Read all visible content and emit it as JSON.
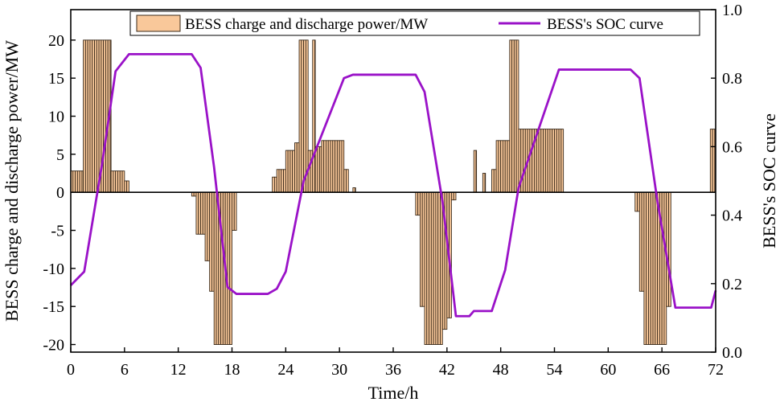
{
  "chart_data": {
    "type": "bar+line",
    "xlabel": "Time/h",
    "ylabel_left": "BESS charge and discharge power/MW",
    "ylabel_right": "BESS's SOC curve",
    "xlim": [
      0,
      72
    ],
    "ylim_left": [
      -21,
      24
    ],
    "ylim_right": [
      0.0,
      1.0
    ],
    "x_ticks": [
      "0",
      "6",
      "12",
      "18",
      "24",
      "30",
      "36",
      "42",
      "48",
      "54",
      "60",
      "66",
      "72"
    ],
    "y_left_ticks": [
      "-20",
      "-15",
      "-10",
      "-5",
      "0",
      "5",
      "10",
      "15",
      "20"
    ],
    "y_right_ticks": [
      "0.0",
      "0.2",
      "0.4",
      "0.6",
      "0.8",
      "1.0"
    ],
    "grid": false,
    "legend_position": "top",
    "colors": {
      "bar_fill": "#F9C89A",
      "bar_edge": "#3A2A1A",
      "soc_line": "#9A12C8",
      "axis": "#000000"
    },
    "series": [
      {
        "name": "BESS charge and discharge power/MW",
        "kind": "bar",
        "segments": [
          [
            0.0,
            1.4,
            2.8
          ],
          [
            1.4,
            4.5,
            20.0
          ],
          [
            4.5,
            6.0,
            2.8
          ],
          [
            6.0,
            6.5,
            1.5
          ],
          [
            13.5,
            14.0,
            -0.5
          ],
          [
            14.0,
            15.0,
            -5.5
          ],
          [
            15.0,
            15.5,
            -9.0
          ],
          [
            15.5,
            16.0,
            -13.0
          ],
          [
            16.0,
            18.0,
            -20.0
          ],
          [
            18.0,
            18.5,
            -5.0
          ],
          [
            22.5,
            23.0,
            2.0
          ],
          [
            23.0,
            24.0,
            3.0
          ],
          [
            24.0,
            25.0,
            5.5
          ],
          [
            25.0,
            25.5,
            6.5
          ],
          [
            25.5,
            26.5,
            20.0
          ],
          [
            26.5,
            27.0,
            5.5
          ],
          [
            27.0,
            27.3,
            20.0
          ],
          [
            27.3,
            28.0,
            6.0
          ],
          [
            28.0,
            30.5,
            6.8
          ],
          [
            30.5,
            31.0,
            3.0
          ],
          [
            31.5,
            31.8,
            0.6
          ],
          [
            38.5,
            39.0,
            -3.0
          ],
          [
            39.0,
            39.5,
            -15.0
          ],
          [
            39.5,
            41.5,
            -20.0
          ],
          [
            41.5,
            42.0,
            -18.0
          ],
          [
            42.0,
            42.5,
            -16.5
          ],
          [
            42.5,
            43.0,
            -1.0
          ],
          [
            45.0,
            45.3,
            5.5
          ],
          [
            46.0,
            46.3,
            2.5
          ],
          [
            47.0,
            47.5,
            3.0
          ],
          [
            47.5,
            48.0,
            6.8
          ],
          [
            48.0,
            49.0,
            6.8
          ],
          [
            49.0,
            50.0,
            20.0
          ],
          [
            50.0,
            55.0,
            8.3
          ],
          [
            63.0,
            63.5,
            -2.5
          ],
          [
            63.5,
            64.0,
            -13.0
          ],
          [
            64.0,
            66.5,
            -20.0
          ],
          [
            66.5,
            67.0,
            -15.0
          ],
          [
            71.4,
            72.0,
            8.3
          ]
        ]
      },
      {
        "name": "BESS's SOC curve",
        "kind": "line",
        "axis": "right",
        "points": [
          [
            0,
            0.195
          ],
          [
            1.5,
            0.235
          ],
          [
            3.5,
            0.55
          ],
          [
            5.0,
            0.82
          ],
          [
            6.5,
            0.87
          ],
          [
            13.5,
            0.87
          ],
          [
            14.5,
            0.83
          ],
          [
            16.0,
            0.54
          ],
          [
            17.5,
            0.19
          ],
          [
            18.5,
            0.17
          ],
          [
            22.0,
            0.17
          ],
          [
            23.0,
            0.185
          ],
          [
            24.0,
            0.235
          ],
          [
            26.0,
            0.5
          ],
          [
            27.5,
            0.6
          ],
          [
            30.5,
            0.8
          ],
          [
            31.5,
            0.81
          ],
          [
            38.5,
            0.81
          ],
          [
            39.5,
            0.76
          ],
          [
            41.5,
            0.44
          ],
          [
            43.0,
            0.105
          ],
          [
            44.5,
            0.105
          ],
          [
            45.0,
            0.12
          ],
          [
            47.0,
            0.12
          ],
          [
            48.5,
            0.24
          ],
          [
            50.0,
            0.48
          ],
          [
            54.5,
            0.825
          ],
          [
            62.5,
            0.825
          ],
          [
            63.5,
            0.8
          ],
          [
            65.5,
            0.44
          ],
          [
            67.5,
            0.13
          ],
          [
            71.5,
            0.13
          ],
          [
            72,
            0.18
          ]
        ]
      }
    ]
  }
}
